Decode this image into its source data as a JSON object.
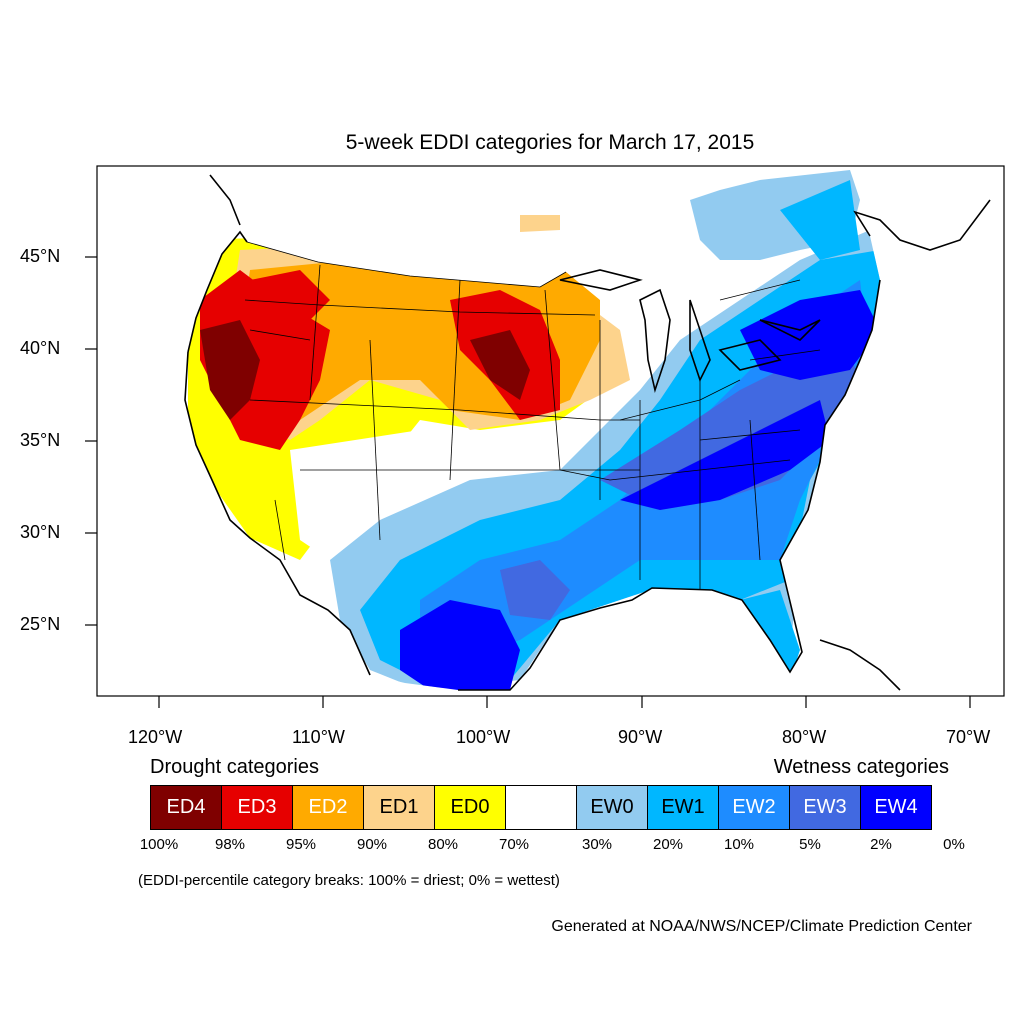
{
  "title": "5-week EDDI categories for March 17, 2015",
  "lat_labels": [
    "45°N",
    "40°N",
    "35°N",
    "30°N",
    "25°N"
  ],
  "lon_labels": [
    "120°W",
    "110°W",
    "100°W",
    "90°W",
    "80°W",
    "70°W"
  ],
  "drought_heading": "Drought categories",
  "wetness_heading": "Wetness categories",
  "categories": [
    {
      "label": "ED4",
      "color": "#7f0000",
      "text_color": "#ffffff"
    },
    {
      "label": "ED3",
      "color": "#e60000",
      "text_color": "#ffffff"
    },
    {
      "label": "ED2",
      "color": "#ffaa00",
      "text_color": "#ffffff"
    },
    {
      "label": "ED1",
      "color": "#fdd38c",
      "text_color": "#000000"
    },
    {
      "label": "ED0",
      "color": "#ffff00",
      "text_color": "#000000"
    },
    {
      "label": "",
      "color": "#ffffff",
      "text_color": "#000000"
    },
    {
      "label": "EW0",
      "color": "#92cbf0",
      "text_color": "#000000"
    },
    {
      "label": "EW1",
      "color": "#00b7ff",
      "text_color": "#000000"
    },
    {
      "label": "EW2",
      "color": "#1e8cff",
      "text_color": "#ffffff"
    },
    {
      "label": "EW3",
      "color": "#4169e1",
      "text_color": "#ffffff"
    },
    {
      "label": "EW4",
      "color": "#0000ff",
      "text_color": "#ffffff"
    }
  ],
  "percent_breaks": [
    "100%",
    "98%",
    "95%",
    "90%",
    "80%",
    "70%",
    "30%",
    "20%",
    "10%",
    "5%",
    "2%",
    "0%"
  ],
  "note": "(EDDI-percentile category breaks: 100% = driest; 0% = wettest)",
  "credit": "Generated at NOAA/NWS/NCEP/Climate Prediction Center"
}
